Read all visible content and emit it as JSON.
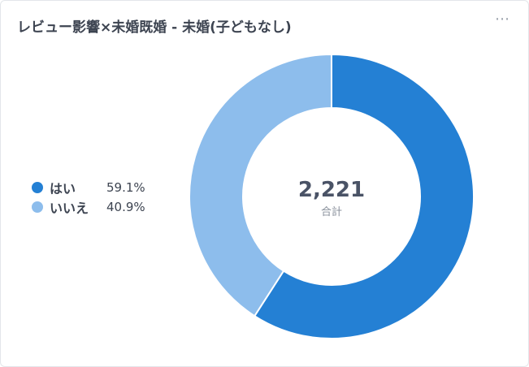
{
  "header": {
    "title": "レビュー影響×未婚既婚 - 未婚(子どもなし)",
    "menu_icon": "more-horizontal-icon",
    "menu_glyph": "⋯"
  },
  "legend": [
    {
      "label": "はい",
      "value": "59.1%",
      "color": "#2480d4"
    },
    {
      "label": "いいえ",
      "value": "40.9%",
      "color": "#8dbdec"
    }
  ],
  "center": {
    "total": "2,221",
    "label": "合計"
  },
  "chart_data": {
    "type": "pie",
    "donut": true,
    "title": "レビュー影響×未婚既婚 - 未婚(子どもなし)",
    "categories": [
      "はい",
      "いいえ"
    ],
    "values": [
      59.1,
      40.9
    ],
    "colors": [
      "#2480d4",
      "#8dbdec"
    ],
    "total": 2221,
    "legend_position": "left"
  }
}
